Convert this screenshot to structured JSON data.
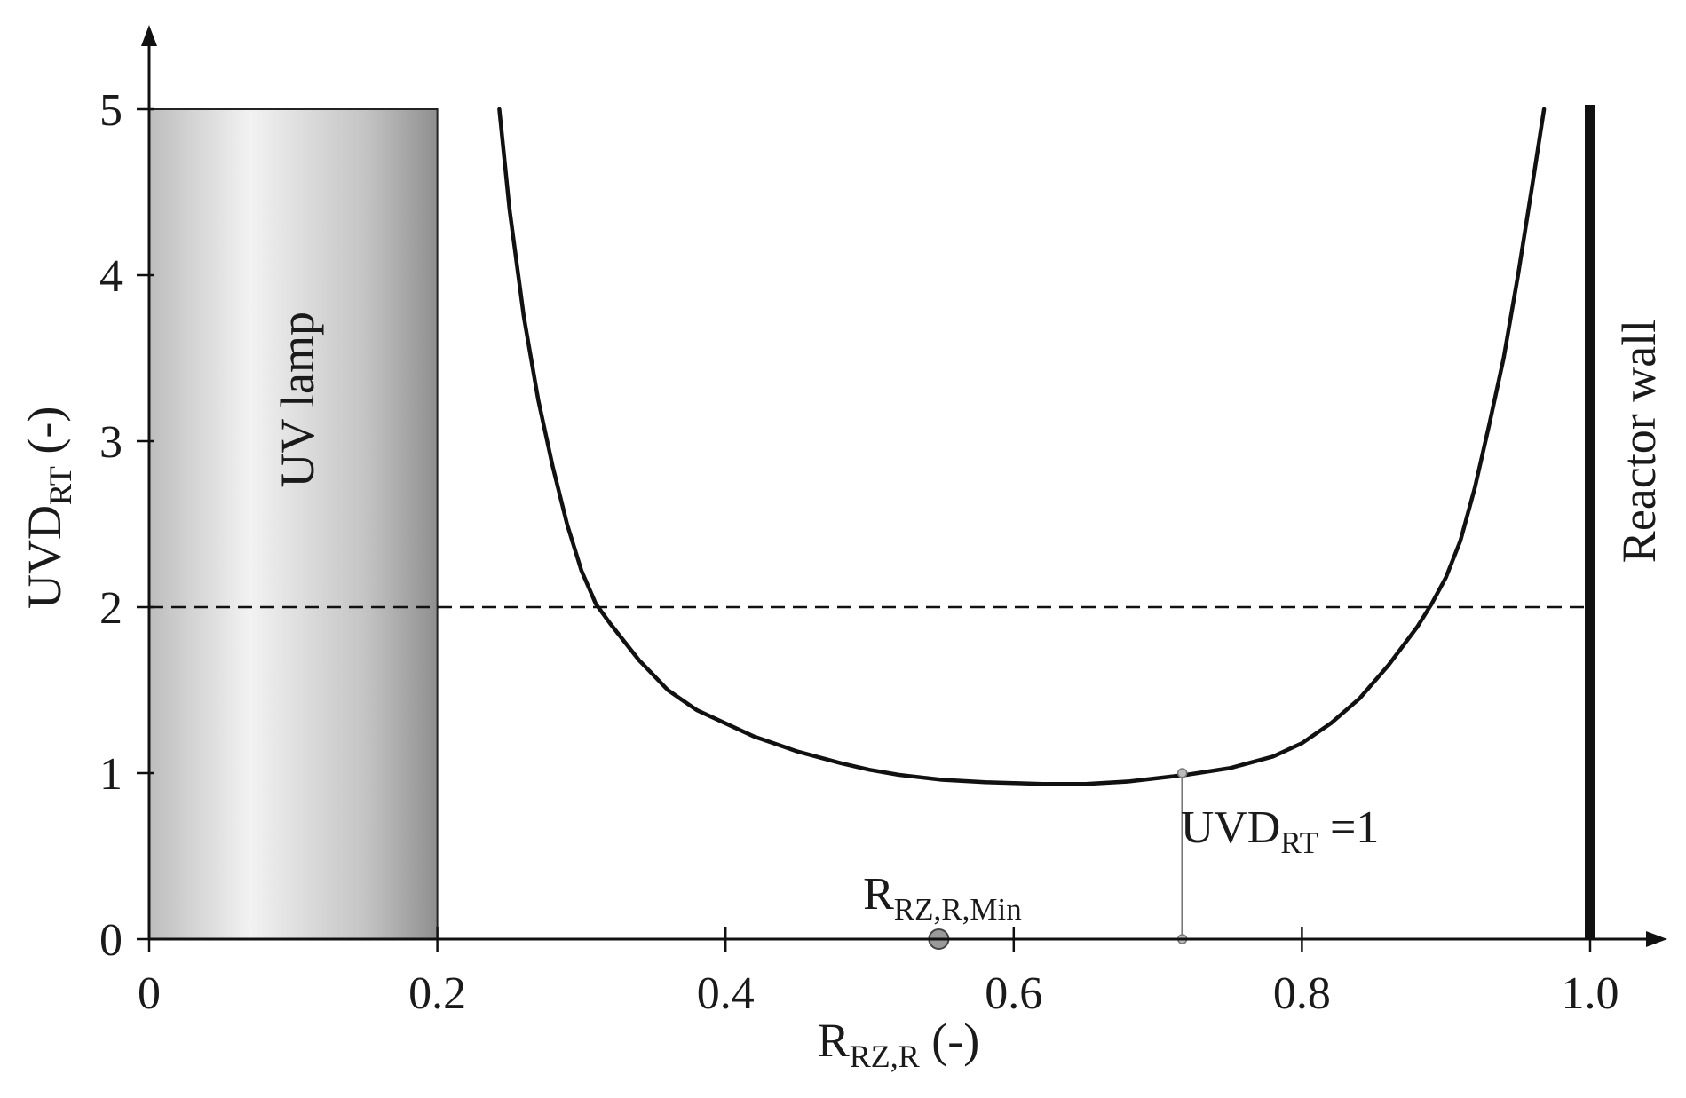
{
  "chart_data": {
    "type": "line",
    "xlabel": {
      "main": "R",
      "sub": "RZ,R",
      "suffix": " (-)"
    },
    "ylabel": {
      "main": "UVD",
      "sub": "RT",
      "suffix": " (-)"
    },
    "xlim": [
      0,
      1.05
    ],
    "ylim": [
      0,
      5.5
    ],
    "x_ticks": [
      0,
      0.2,
      0.4,
      0.6,
      0.8,
      1.0
    ],
    "x_tick_labels": [
      "0",
      "0.2",
      "0.4",
      "0.6",
      "0.8",
      "1.0"
    ],
    "y_ticks": [
      0,
      1,
      2,
      3,
      4,
      5
    ],
    "y_tick_labels": [
      "0",
      "1",
      "2",
      "3",
      "4",
      "5"
    ],
    "grid": false,
    "series": [
      {
        "style": "solid",
        "color": "#111111",
        "x": [
          0.243,
          0.25,
          0.26,
          0.27,
          0.28,
          0.29,
          0.3,
          0.31,
          0.32,
          0.34,
          0.36,
          0.38,
          0.4,
          0.42,
          0.45,
          0.48,
          0.5,
          0.52,
          0.55,
          0.58,
          0.6,
          0.62,
          0.65,
          0.68,
          0.7,
          0.72,
          0.75,
          0.78,
          0.8,
          0.82,
          0.84,
          0.86,
          0.88,
          0.89,
          0.9,
          0.91,
          0.92,
          0.93,
          0.94,
          0.95,
          0.96,
          0.968
        ],
        "y": [
          5.0,
          4.4,
          3.75,
          3.25,
          2.85,
          2.5,
          2.22,
          2.02,
          1.9,
          1.68,
          1.5,
          1.38,
          1.3,
          1.22,
          1.13,
          1.06,
          1.02,
          0.99,
          0.96,
          0.945,
          0.94,
          0.935,
          0.935,
          0.95,
          0.97,
          0.99,
          1.03,
          1.1,
          1.18,
          1.3,
          1.45,
          1.65,
          1.88,
          2.02,
          2.18,
          2.4,
          2.72,
          3.1,
          3.5,
          4.0,
          4.55,
          5.0
        ]
      }
    ],
    "reference_line": {
      "y": 2,
      "style": "dashed",
      "color": "#111111"
    },
    "regions": [
      {
        "label": "UV lamp",
        "x": [
          0,
          0.2
        ],
        "y": [
          0,
          5
        ],
        "fill": "#bdbdbd"
      }
    ],
    "walls": [
      {
        "label": "Reactor wall",
        "x": 1.0,
        "y": [
          0,
          5
        ],
        "color": "#111111"
      }
    ],
    "markers": [
      {
        "label": {
          "main": "R",
          "sub": "RZ,R,Min"
        },
        "x": 0.548,
        "y": 0,
        "color": "#9a9a9a"
      }
    ],
    "annotations": [
      {
        "label": {
          "main": "UVD",
          "sub": "RT",
          "suffix": " =1"
        },
        "x": 0.717,
        "y_from": 0,
        "y_to": 1,
        "color": "#777777"
      }
    ]
  }
}
